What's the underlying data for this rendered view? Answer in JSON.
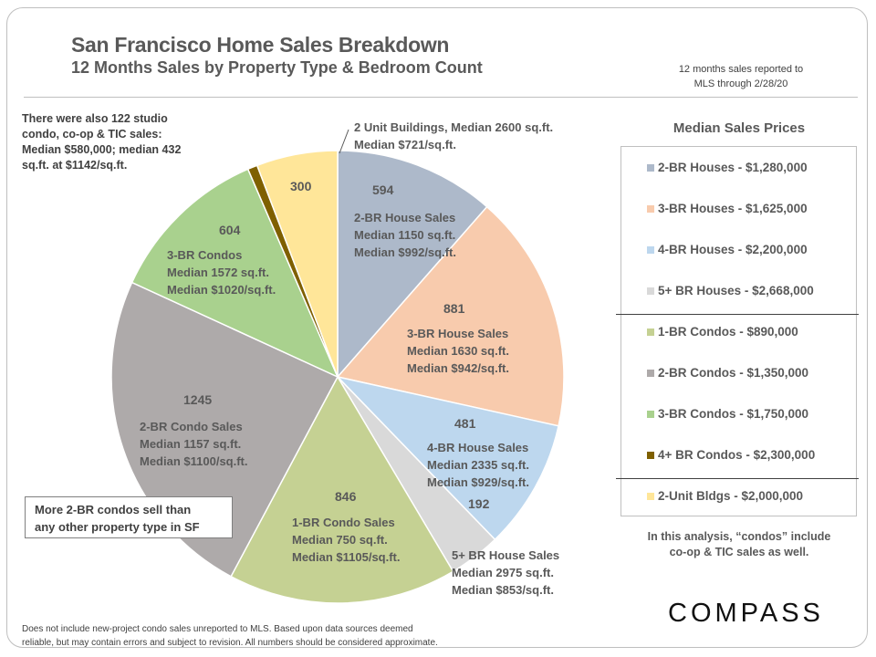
{
  "header": {
    "title": "San Francisco Home Sales Breakdown",
    "subtitle": "12 Months Sales by Property Type & Bedroom Count",
    "note_line1": "12 months sales reported to",
    "note_line2": "MLS through 2/28/20"
  },
  "studio_note": "There were also 122 studio condo, co-op & TIC sales: Median $580,000; median 432 sq.ft. at $1142/sq.ft.",
  "callout": [
    "More 2-BR condos sell than",
    "any other property type in SF"
  ],
  "chart_data": {
    "type": "pie",
    "title": "San Francisco Home Sales Breakdown",
    "subtitle": "12 Months Sales by Property Type & Bedroom Count",
    "slices": [
      {
        "name": "2-BR Houses",
        "value": 594,
        "color": "#adb9ca",
        "label": [
          "2-BR House Sales",
          "Median 1150 sq.ft.",
          "Median $992/sq.ft."
        ]
      },
      {
        "name": "3-BR Houses",
        "value": 881,
        "color": "#f8cbad",
        "label": [
          "3-BR House Sales",
          "Median 1630 sq.ft.",
          "Median $942/sq.ft."
        ]
      },
      {
        "name": "4-BR Houses",
        "value": 481,
        "color": "#bdd7ee",
        "label": [
          "4-BR House Sales",
          "Median 2335 sq.ft.",
          "Median $929/sq.ft."
        ]
      },
      {
        "name": "5+ BR Houses",
        "value": 192,
        "color": "#d9d9d9",
        "label": [
          "5+ BR House Sales",
          "Median 2975 sq.ft.",
          "Median $853/sq.ft."
        ]
      },
      {
        "name": "1-BR Condos",
        "value": 846,
        "color": "#c5d193",
        "label": [
          "1-BR Condo Sales",
          "Median 750 sq.ft.",
          "Median $1105/sq.ft."
        ]
      },
      {
        "name": "2-BR Condos",
        "value": 1245,
        "color": "#aeaaaa",
        "label": [
          "2-BR Condo Sales",
          "Median 1157 sq.ft.",
          "Median $1100/sq.ft."
        ]
      },
      {
        "name": "3-BR Condos",
        "value": 604,
        "color": "#a9d18e",
        "label": [
          "3-BR Condos",
          "Median 1572 sq.ft.",
          "Median $1020/sq.ft."
        ]
      },
      {
        "name": "4+ BR Condos",
        "value": 36,
        "color": "#7f6000",
        "label": []
      },
      {
        "name": "2-Unit Bldgs",
        "value": 300,
        "color": "#ffe699",
        "label": [
          "2 Unit Buildings, Median 2600 sq.ft.",
          "Median $721/sq.ft."
        ]
      }
    ]
  },
  "legend": {
    "title": "Median Sales Prices",
    "items": [
      {
        "text": "2-BR Houses - $1,280,000",
        "color": "#adb9ca"
      },
      {
        "text": "3-BR Houses - $1,625,000",
        "color": "#f8cbad"
      },
      {
        "text": "4-BR Houses - $2,200,000",
        "color": "#bdd7ee"
      },
      {
        "text": "5+ BR Houses - $2,668,000",
        "color": "#d9d9d9"
      },
      {
        "text": "1-BR Condos - $890,000",
        "color": "#c5d193"
      },
      {
        "text": "2-BR Condos - $1,350,000",
        "color": "#aeaaaa"
      },
      {
        "text": "3-BR Condos - $1,750,000",
        "color": "#a9d18e"
      },
      {
        "text": "4+ BR Condos - $2,300,000",
        "color": "#7f6000"
      },
      {
        "text": "2-Unit Bldgs - $2,000,000",
        "color": "#ffe699"
      }
    ]
  },
  "condo_note": [
    "In this analysis, “condos” include",
    "co-op & TIC sales as well."
  ],
  "footer": [
    "Does not include new-project condo sales unreported to MLS.  Based upon data sources deemed",
    "reliable, but may contain errors and subject to revision. All numbers should be considered approximate."
  ],
  "logo": "COMPASS"
}
